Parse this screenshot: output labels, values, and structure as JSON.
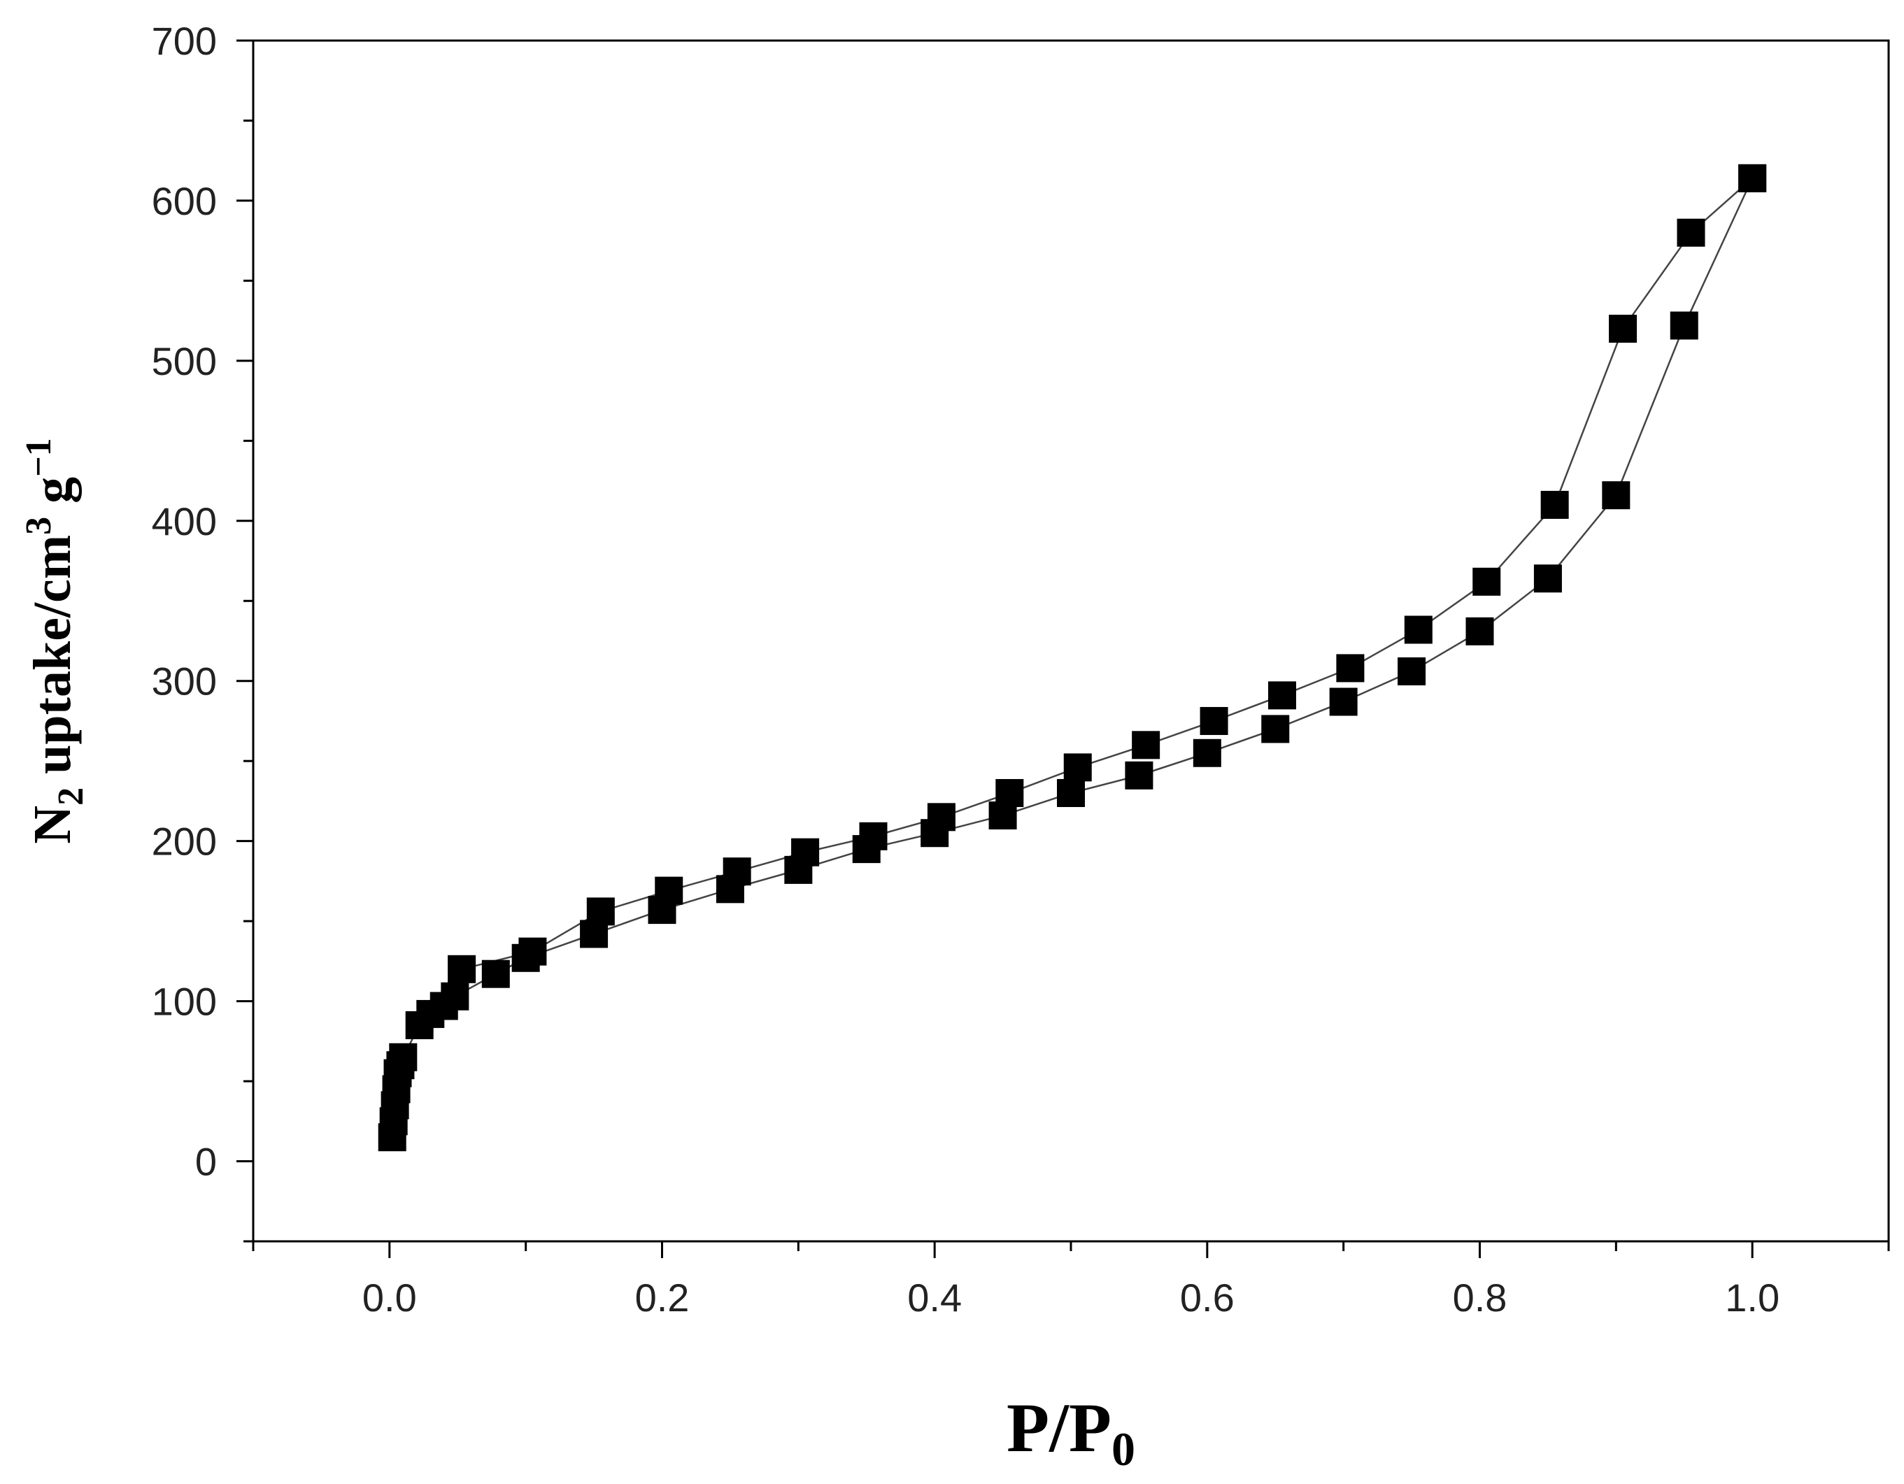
{
  "chart_data": {
    "type": "scatter",
    "title": "",
    "xlabel": "P/P0",
    "xlabel_parts": {
      "base": "P/P",
      "sub": "0"
    },
    "ylabel": "N2 uptake/cm3 g−1",
    "ylabel_parts": {
      "pre": "N",
      "sub": "2",
      "mid": " uptake/cm",
      "sup1": "3",
      "mid2": " g",
      "sup2": "−1"
    },
    "xlim": [
      -0.1,
      1.1
    ],
    "ylim": [
      -50,
      700
    ],
    "xticks": [
      0.0,
      0.2,
      0.4,
      0.6,
      0.8,
      1.0
    ],
    "xtick_labels": [
      "0.0",
      "0.2",
      "0.4",
      "0.6",
      "0.8",
      "1.0"
    ],
    "yticks": [
      0,
      100,
      200,
      300,
      400,
      500,
      600,
      700
    ],
    "ytick_labels": [
      "0",
      "100",
      "200",
      "300",
      "400",
      "500",
      "600",
      "700"
    ],
    "grid": false,
    "legend": "none",
    "marker": "square",
    "color": "#000000",
    "series": [
      {
        "x": [
          0.002,
          0.003,
          0.004,
          0.005,
          0.006,
          0.008,
          0.01,
          0.022,
          0.03,
          0.04,
          0.048,
          0.078,
          0.1,
          0.15,
          0.2,
          0.25,
          0.3,
          0.35,
          0.4,
          0.45,
          0.5,
          0.55,
          0.6,
          0.65,
          0.7,
          0.75,
          0.8,
          0.85,
          0.9,
          0.95,
          1.0
        ],
        "y": [
          15,
          25,
          35,
          45,
          55,
          60,
          65,
          85,
          92,
          97,
          103,
          117,
          127,
          142,
          157,
          170,
          182,
          195,
          205,
          216,
          230,
          241,
          255,
          270,
          287,
          306,
          331,
          364,
          416,
          522,
          614
        ]
      },
      {
        "x": [
          0.053,
          0.105,
          0.155,
          0.205,
          0.255,
          0.305,
          0.355,
          0.405,
          0.455,
          0.505,
          0.555,
          0.605,
          0.655,
          0.705,
          0.755,
          0.805,
          0.855,
          0.905,
          0.955,
          1.0
        ],
        "y": [
          120,
          131,
          156,
          169,
          181,
          193,
          203,
          215,
          230,
          246,
          260,
          275,
          291,
          308,
          332,
          362,
          410,
          520,
          580,
          614
        ]
      }
    ]
  }
}
